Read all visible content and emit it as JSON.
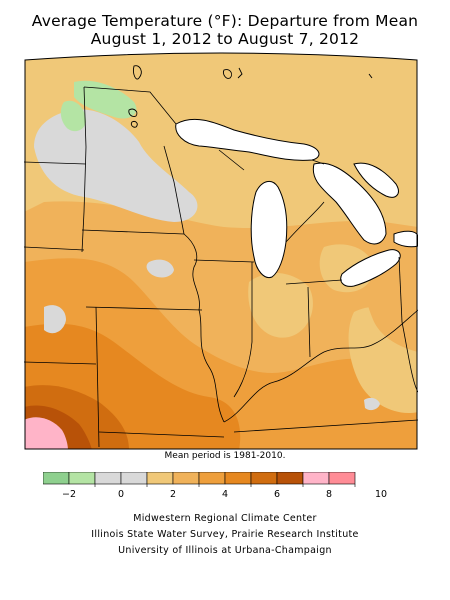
{
  "title": {
    "line1": "Average Temperature (°F): Departure from Mean",
    "line2": "August 1, 2012 to August 7, 2012"
  },
  "note": "Mean period is 1981-2010.",
  "legend": {
    "colors": [
      "#8ed08e",
      "#b4e4a4",
      "#d9d9d9",
      "#d9d9d9",
      "#f0c878",
      "#f0b25a",
      "#ee9f3c",
      "#e68820",
      "#d06d10",
      "#b85208",
      "#ffb4c8",
      "#ff8c96"
    ],
    "tick_labels": [
      "−2",
      "0",
      "2",
      "4",
      "6",
      "8",
      "10"
    ]
  },
  "credits": [
    "Midwestern Regional Climate Center",
    "Illinois State Water Survey, Prairie Research Institute",
    "University of Illinois at Urbana-Champaign"
  ]
}
